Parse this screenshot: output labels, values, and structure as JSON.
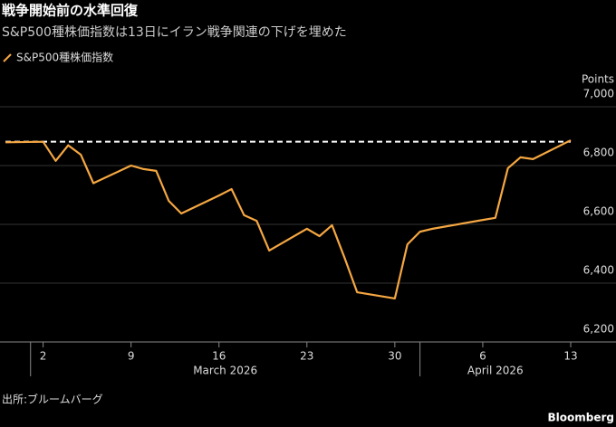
{
  "chart_data": {
    "type": "line",
    "title": "戦争開始前の水準回復",
    "subtitle": "S&P500種株価指数は13日にイラン戦争関連の下げを埋めた",
    "y_axis_label": "Points",
    "source": "出所:ブルームバーグ",
    "brand": "Bloomberg",
    "x": [
      "2026-02-27",
      "2026-03-02",
      "2026-03-03",
      "2026-03-04",
      "2026-03-05",
      "2026-03-06",
      "2026-03-09",
      "2026-03-10",
      "2026-03-11",
      "2026-03-12",
      "2026-03-13",
      "2026-03-16",
      "2026-03-17",
      "2026-03-18",
      "2026-03-19",
      "2026-03-20",
      "2026-03-23",
      "2026-03-24",
      "2026-03-25",
      "2026-03-26",
      "2026-03-27",
      "2026-03-30",
      "2026-03-31",
      "2026-04-01",
      "2026-04-02",
      "2026-04-06",
      "2026-04-07",
      "2026-04-08",
      "2026-04-09",
      "2026-04-10",
      "2026-04-13"
    ],
    "series": [
      {
        "name": "S&P500種株価指数",
        "color": "#f5a742",
        "values": [
          6879,
          6881,
          6816,
          6869,
          6837,
          6740,
          6800,
          6788,
          6782,
          6680,
          6637,
          6698,
          6720,
          6631,
          6612,
          6511,
          6585,
          6560,
          6597,
          6486,
          6369,
          6348,
          6532,
          6575,
          6585,
          6615,
          6622,
          6791,
          6828,
          6822,
          6886
        ]
      }
    ],
    "reference_line": 6881,
    "xlim": [
      "2026-02-27",
      "2026-04-13"
    ],
    "xticks": [
      {
        "value": "2026-03-02",
        "label": "2"
      },
      {
        "value": "2026-03-09",
        "label": "9"
      },
      {
        "value": "2026-03-16",
        "label": "16"
      },
      {
        "value": "2026-03-23",
        "label": "23"
      },
      {
        "value": "2026-03-30",
        "label": "30"
      },
      {
        "value": "2026-04-06",
        "label": "6"
      },
      {
        "value": "2026-04-13",
        "label": "13"
      }
    ],
    "month_labels": [
      {
        "value": "2026-03-01",
        "label": "March 2026"
      },
      {
        "value": "2026-04-01",
        "label": "April 2026"
      }
    ],
    "ylim": [
      6200,
      7000
    ],
    "yticks": [
      {
        "value": 6200,
        "label": "6,200"
      },
      {
        "value": 6400,
        "label": "6,400"
      },
      {
        "value": 6600,
        "label": "6,600"
      },
      {
        "value": 6800,
        "label": "6,800"
      },
      {
        "value": 7000,
        "label": "7,000"
      }
    ],
    "grid": true
  }
}
